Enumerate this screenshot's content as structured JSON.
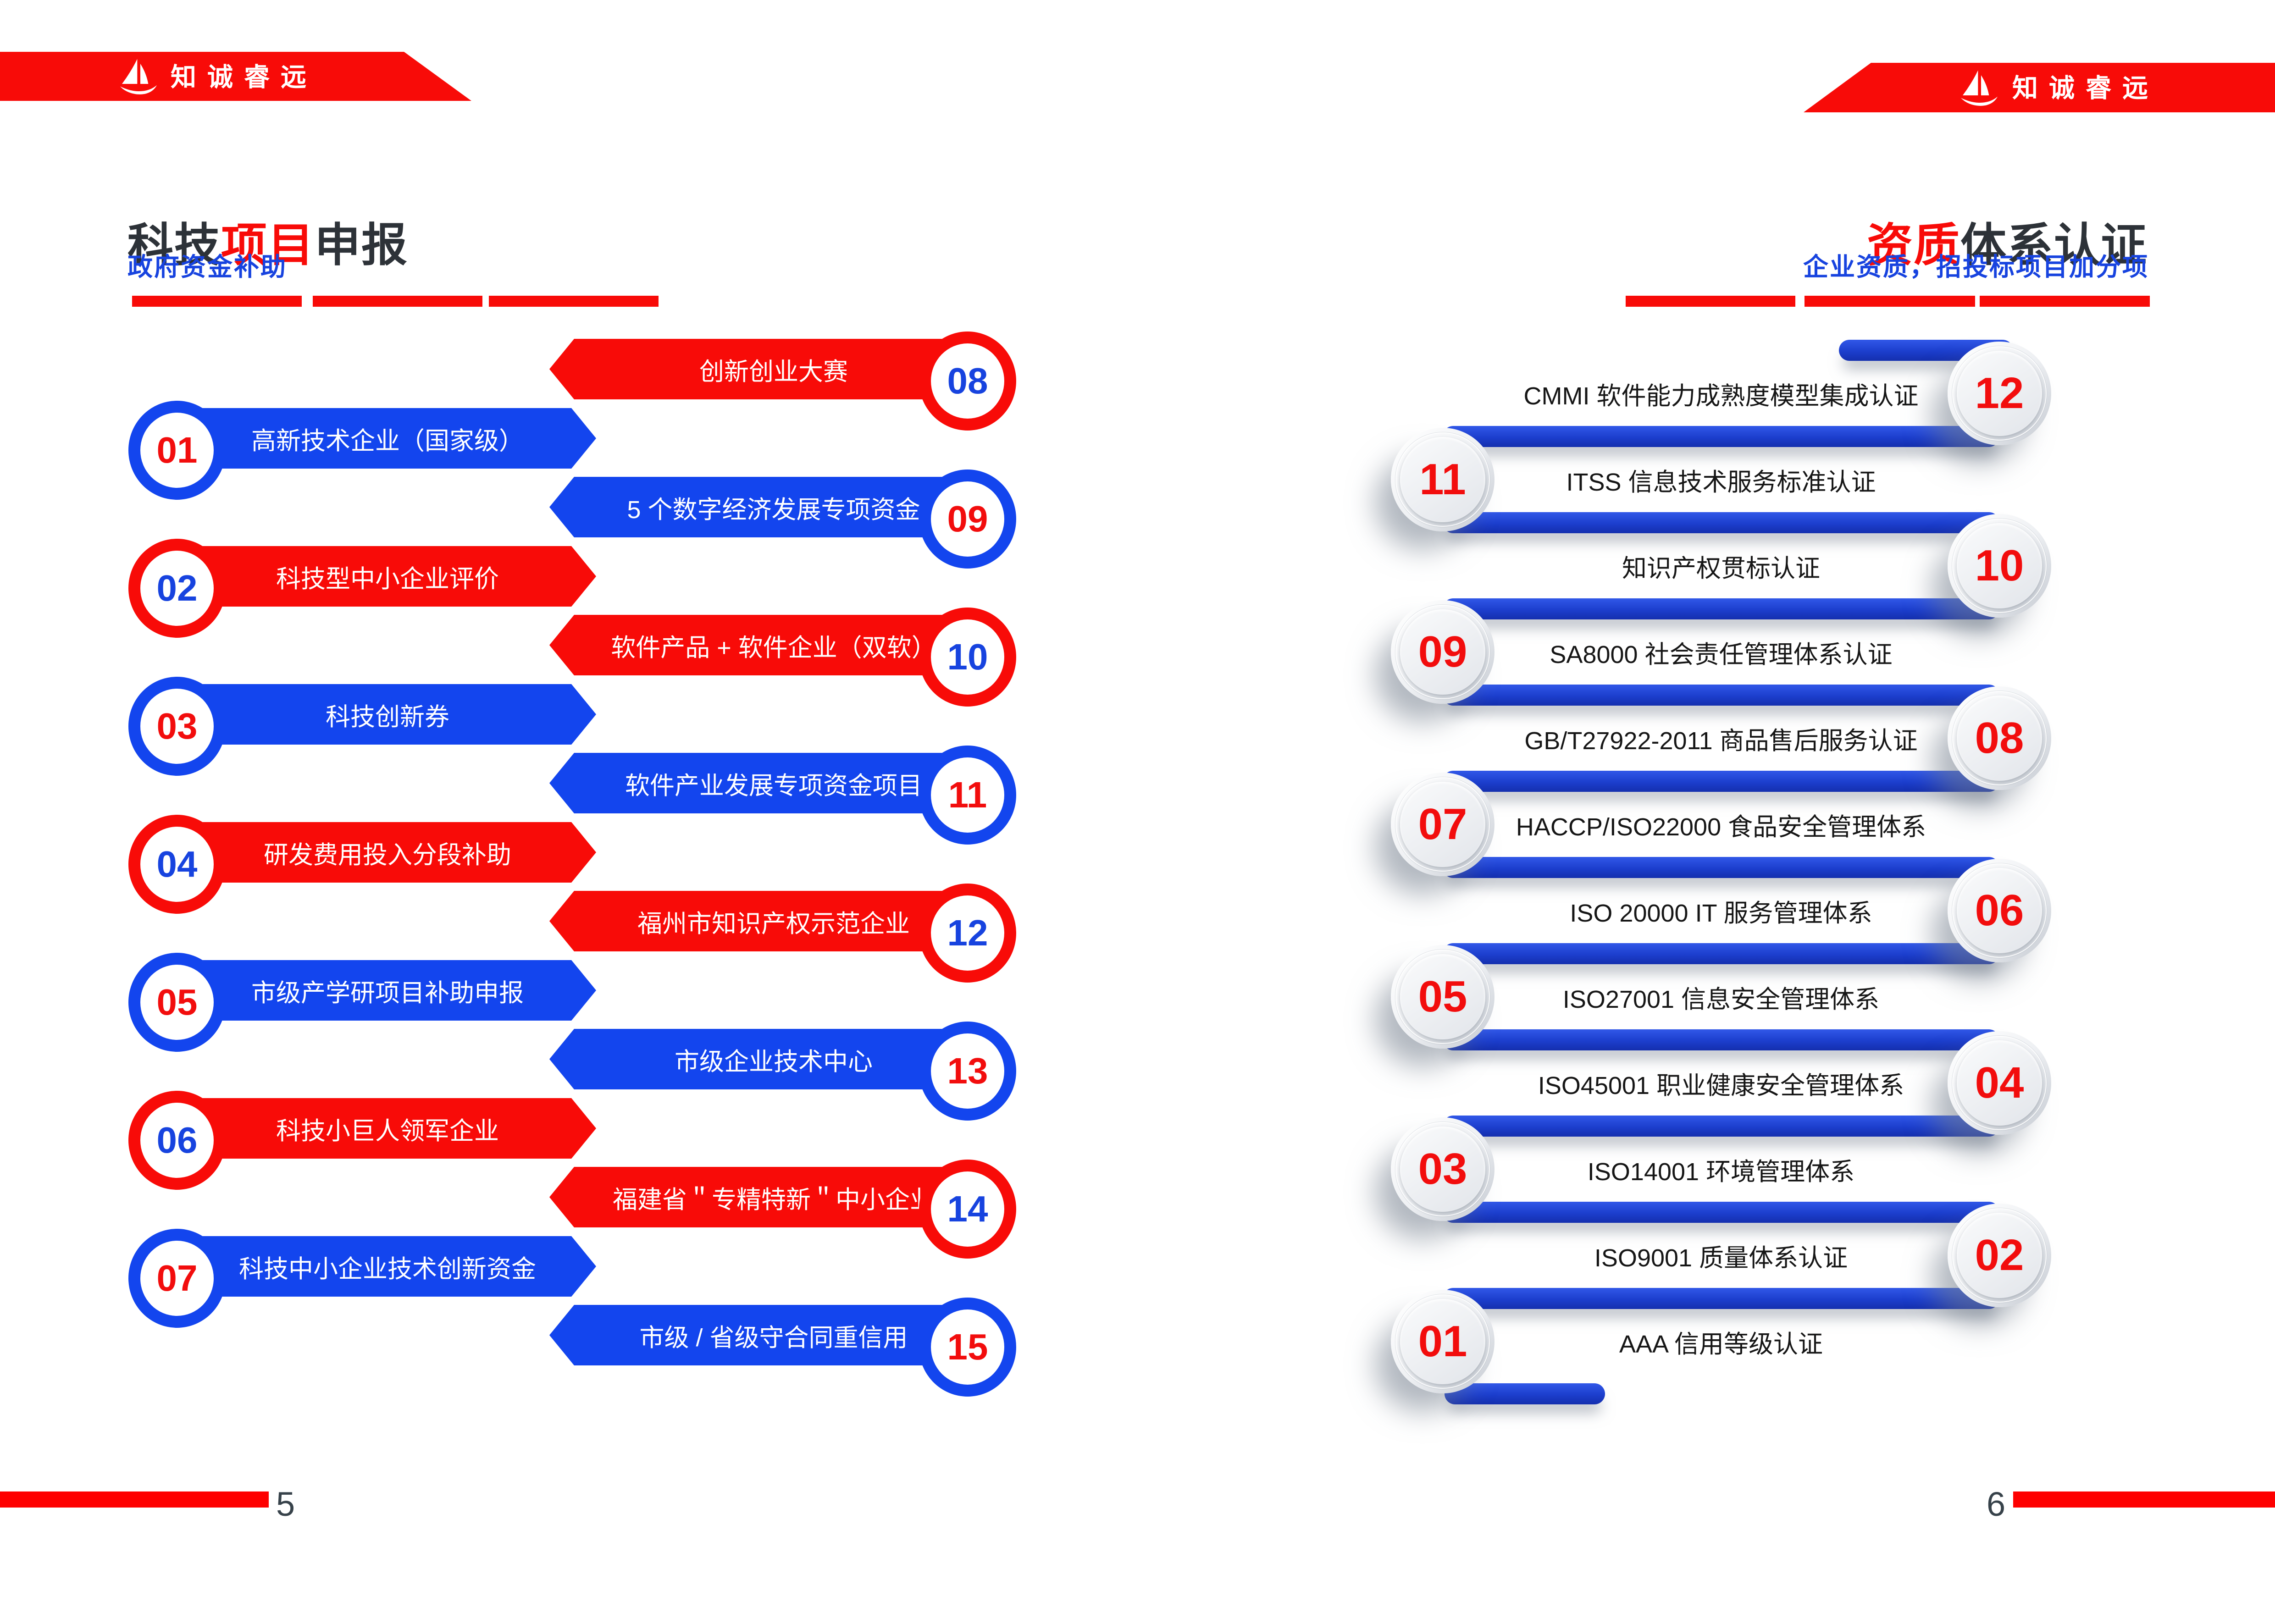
{
  "brand": "知诚睿远",
  "left_page": {
    "title_parts": [
      "科技",
      "项目",
      "申报"
    ],
    "subtitle": "政府资金补助",
    "page_number": "5",
    "items": [
      {
        "num": "01",
        "label": "高新技术企业（国家级）",
        "color": "blue"
      },
      {
        "num": "02",
        "label": "科技型中小企业评价",
        "color": "red"
      },
      {
        "num": "03",
        "label": "科技创新券",
        "color": "blue"
      },
      {
        "num": "04",
        "label": "研发费用投入分段补助",
        "color": "red"
      },
      {
        "num": "05",
        "label": "市级产学研项目补助申报",
        "color": "blue"
      },
      {
        "num": "06",
        "label": "科技小巨人领军企业",
        "color": "red"
      },
      {
        "num": "07",
        "label": "科技中小企业技术创新资金",
        "color": "blue"
      },
      {
        "num": "08",
        "label": "创新创业大赛",
        "color": "red"
      },
      {
        "num": "09",
        "label": "5 个数字经济发展专项资金",
        "color": "blue"
      },
      {
        "num": "10",
        "label": "软件产品 + 软件企业（双软）",
        "color": "red"
      },
      {
        "num": "11",
        "label": "软件产业发展专项资金项目",
        "color": "blue"
      },
      {
        "num": "12",
        "label": "福州市知识产权示范企业",
        "color": "red"
      },
      {
        "num": "13",
        "label": "市级企业技术中心",
        "color": "blue"
      },
      {
        "num": "14",
        "label": "福建省＂专精特新＂中小企业",
        "color": "red"
      },
      {
        "num": "15",
        "label": "市级 / 省级守合同重信用",
        "color": "blue"
      }
    ]
  },
  "right_page": {
    "title_parts": [
      "资质",
      "体系认证"
    ],
    "subtitle": "企业资质，招投标项目加分项",
    "page_number": "6",
    "items": [
      {
        "num": "12",
        "label": "CMMI 软件能力成熟度模型集成认证"
      },
      {
        "num": "11",
        "label": "ITSS 信息技术服务标准认证"
      },
      {
        "num": "10",
        "label": "知识产权贯标认证"
      },
      {
        "num": "09",
        "label": "SA8000 社会责任管理体系认证"
      },
      {
        "num": "08",
        "label": "GB/T27922-2011 商品售后服务认证"
      },
      {
        "num": "07",
        "label": "HACCP/ISO22000 食品安全管理体系"
      },
      {
        "num": "06",
        "label": "ISO 20000 IT 服务管理体系"
      },
      {
        "num": "05",
        "label": "ISO27001 信息安全管理体系"
      },
      {
        "num": "04",
        "label": "ISO45001 职业健康安全管理体系"
      },
      {
        "num": "03",
        "label": "ISO14001 环境管理体系"
      },
      {
        "num": "02",
        "label": "ISO9001 质量体系认证"
      },
      {
        "num": "01",
        "label": "AAA 信用等级认证"
      }
    ]
  },
  "colors": {
    "red": "#F80B08",
    "ribbon_blue": "#1345EE",
    "pipe_blue": "#1C3ECD",
    "number_red": "#F20D0D",
    "number_blue": "#1743DF",
    "title_dark": "#2D3238",
    "body_text": "#161616",
    "footer_red": "#FE0000"
  }
}
